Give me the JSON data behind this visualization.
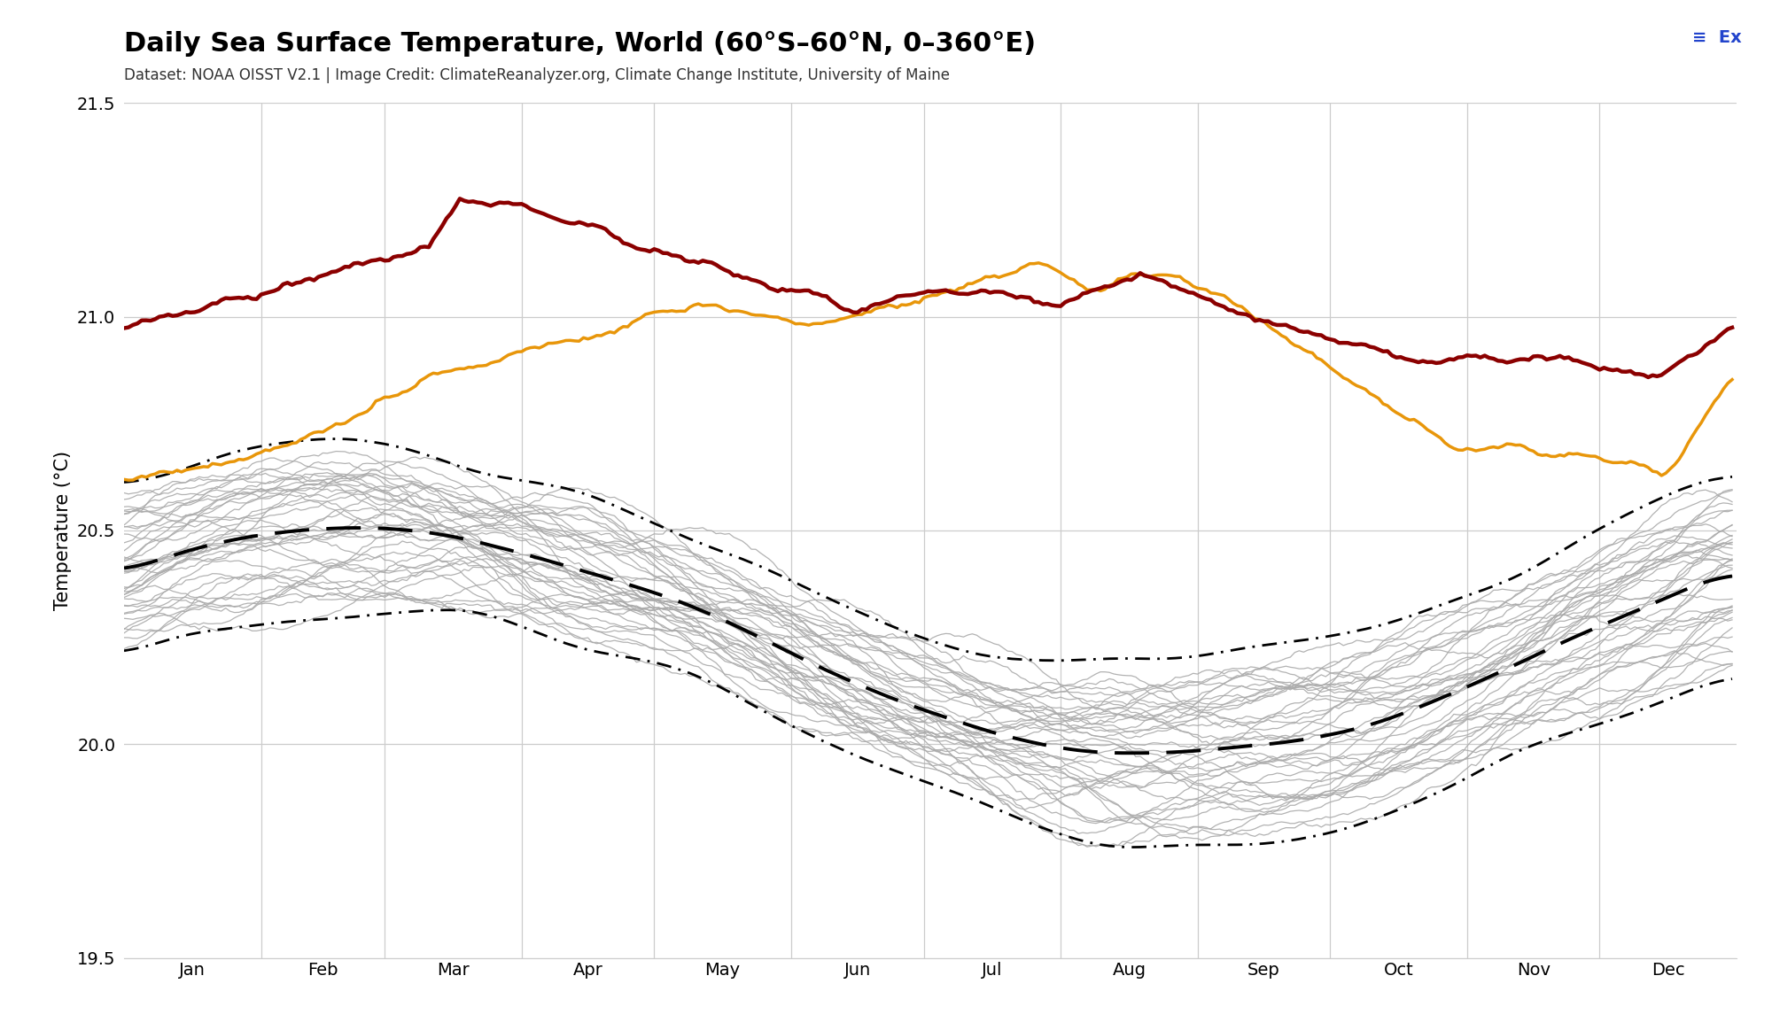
{
  "title": "Daily Sea Surface Temperature, World (60°S–60°N, 0–360°E)",
  "subtitle": "Dataset: NOAA OISST V2.1 | Image Credit: ClimateReanalyzer.org, Climate Change Institute, University of Maine",
  "ylabel": "Temperature (°C)",
  "ylim": [
    19.5,
    21.5
  ],
  "yticks": [
    19.5,
    20.0,
    20.5,
    21.0,
    21.5
  ],
  "months": [
    "Jan",
    "Feb",
    "Mar",
    "Apr",
    "May",
    "Jun",
    "Jul",
    "Aug",
    "Sep",
    "Oct",
    "Nov",
    "Dec"
  ],
  "month_starts": [
    0,
    31,
    59,
    90,
    120,
    151,
    181,
    212,
    243,
    273,
    304,
    334
  ],
  "background_color": "#ffffff",
  "color_2024": "#8b0000",
  "color_2023": "#e8960a",
  "color_hist": "#aaaaaa",
  "color_mean": "#000000",
  "color_grid": "#cccccc",
  "title_fontsize": 22,
  "subtitle_fontsize": 12,
  "ylabel_fontsize": 15,
  "tick_fontsize": 14,
  "n_days": 365,
  "n_hist": 40
}
